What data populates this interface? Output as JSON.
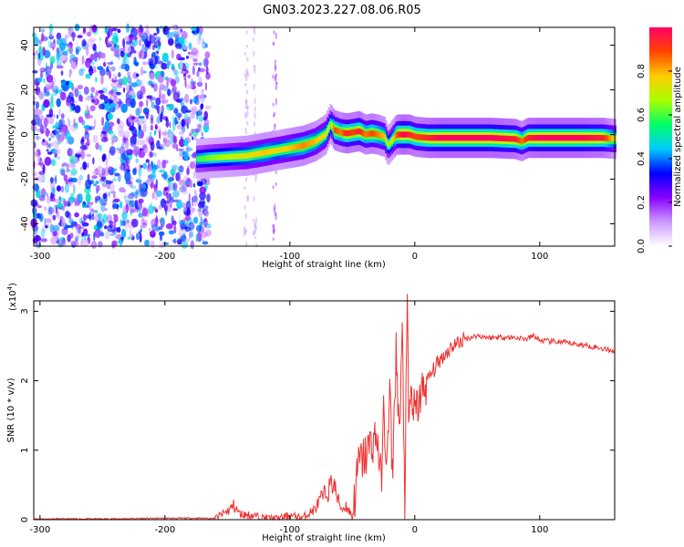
{
  "title": "GN03.2023.227.08.06.R05",
  "chart_data": [
    {
      "type": "heatmap",
      "title": "GN03.2023.227.08.06.R05",
      "xlabel": "Height of straight line (km)",
      "ylabel": "Frequency (Hz)",
      "xlim": [
        -305,
        160
      ],
      "ylim": [
        -50,
        48
      ],
      "x_ticks": [
        -300,
        -200,
        -100,
        0,
        100
      ],
      "y_ticks": [
        -40,
        -20,
        0,
        20,
        40
      ],
      "colorbar": {
        "label": "Normalized spectral amplitude",
        "range": [
          0,
          1
        ],
        "ticks": [
          0.0,
          0.2,
          0.4,
          0.6,
          0.8
        ],
        "colors": [
          "#ffffff",
          "#cc99ff",
          "#8800ff",
          "#0000ff",
          "#00ccff",
          "#00ff66",
          "#aaff00",
          "#ffcc00",
          "#ff4400",
          "#ff0066"
        ]
      },
      "noise_region_x": [
        -305,
        -165
      ],
      "ridge": {
        "x": [
          -175,
          -165,
          -150,
          -135,
          -120,
          -110,
          -100,
          -90,
          -80,
          -72,
          -68,
          -65,
          -60,
          -55,
          -50,
          -45,
          -40,
          -35,
          -30,
          -25,
          -22,
          -18,
          -15,
          -10,
          -5,
          0,
          10,
          20,
          40,
          60,
          80,
          85,
          90,
          100,
          110,
          130,
          150,
          160
        ],
        "y": [
          -11,
          -10.5,
          -10,
          -9.5,
          -8,
          -7,
          -6,
          -5,
          -3,
          0,
          5,
          2,
          1,
          0.5,
          1,
          1.5,
          0,
          0.5,
          0,
          -1,
          -5,
          -2,
          0,
          0,
          0,
          -1,
          -1.5,
          -1.5,
          -1.5,
          -1.5,
          -2,
          -3,
          -1.5,
          -1.5,
          -1.5,
          -1.5,
          -1.5,
          -2
        ],
        "amplitude": [
          0.55,
          0.6,
          0.65,
          0.7,
          0.75,
          0.7,
          0.75,
          0.8,
          0.75,
          0.7,
          0.6,
          0.85,
          0.8,
          0.9,
          0.85,
          0.9,
          0.8,
          0.85,
          0.8,
          0.75,
          0.6,
          0.7,
          0.85,
          0.95,
          0.9,
          0.85,
          0.9,
          0.95,
          0.95,
          0.95,
          0.9,
          0.8,
          0.9,
          0.95,
          0.95,
          0.95,
          0.9,
          0.7
        ]
      }
    },
    {
      "type": "line",
      "xlabel": "Height of straight line (km)",
      "ylabel": "SNR (10 * v/v)",
      "y_multiplier_label": "(x10",
      "y_multiplier_exp": "4",
      "y_multiplier_close": ")",
      "xlim": [
        -305,
        160
      ],
      "ylim": [
        0,
        3.15
      ],
      "x_ticks": [
        -300,
        -200,
        -100,
        0,
        100
      ],
      "y_ticks": [
        0,
        1,
        2,
        3
      ],
      "line_color": "#ee3333",
      "series": [
        {
          "x": [
            -305,
            -250,
            -200,
            -160,
            -150,
            -145,
            -140,
            -130,
            -120,
            -110,
            -100,
            -90,
            -80,
            -75,
            -70,
            -65,
            -62,
            -58,
            -55,
            -50,
            -45,
            -40,
            -35,
            -30,
            -27,
            -25,
            -22,
            -20,
            -18,
            -15,
            -12,
            -10,
            -8,
            -6,
            -5,
            -3,
            0,
            5,
            10,
            20,
            30,
            40,
            50,
            60,
            70,
            80,
            90,
            95,
            100,
            120,
            140,
            160
          ],
          "y": [
            0.01,
            0.01,
            0.02,
            0.02,
            0.12,
            0.2,
            0.08,
            0.06,
            0.03,
            0.02,
            0.06,
            0.03,
            0.15,
            0.3,
            0.4,
            0.55,
            0.3,
            0.15,
            0.2,
            0.05,
            0.8,
            0.9,
            1.1,
            1.2,
            0.5,
            1.5,
            0.8,
            1.9,
            0.6,
            2.4,
            1.2,
            2.7,
            0.2,
            3.2,
            1.4,
            1.8,
            1.5,
            1.8,
            2.0,
            2.3,
            2.5,
            2.6,
            2.65,
            2.62,
            2.63,
            2.62,
            2.6,
            2.65,
            2.58,
            2.55,
            2.5,
            2.43
          ]
        }
      ]
    }
  ]
}
